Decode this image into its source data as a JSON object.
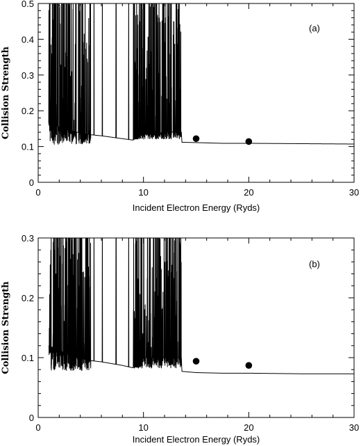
{
  "chart_data": [
    {
      "type": "line",
      "panel_label": "(a)",
      "xlabel": "Incident Electron Energy (Ryds)",
      "ylabel": "Collision Strength",
      "xlim": [
        0,
        30
      ],
      "ylim": [
        0,
        0.5
      ],
      "xticks": [
        "0",
        "10",
        "20",
        "30"
      ],
      "yticks": [
        "0",
        "0.1",
        "0.2",
        "0.3",
        "0.4",
        "0.5"
      ],
      "background": [
        [
          1.0,
          0.165
        ],
        [
          2.0,
          0.155
        ],
        [
          3.0,
          0.145
        ],
        [
          4.0,
          0.138
        ],
        [
          5.0,
          0.133
        ],
        [
          6.0,
          0.13
        ],
        [
          7.0,
          0.126
        ],
        [
          8.0,
          0.122
        ],
        [
          9.0,
          0.118
        ],
        [
          10.0,
          0.135
        ],
        [
          11.0,
          0.135
        ],
        [
          12.0,
          0.14
        ],
        [
          13.0,
          0.14
        ],
        [
          13.6,
          0.14
        ],
        [
          13.65,
          0.112
        ],
        [
          15.0,
          0.111
        ],
        [
          17.5,
          0.109
        ],
        [
          20.0,
          0.109
        ],
        [
          25.0,
          0.108
        ],
        [
          30.0,
          0.107
        ]
      ],
      "resonance_regions": [
        {
          "x_from": 1.0,
          "x_to": 5.0,
          "y_low": 0.105,
          "y_high": 0.5
        },
        {
          "x_from": 9.0,
          "x_to": 13.6,
          "y_low": 0.12,
          "y_high": 0.5
        }
      ],
      "points": [
        [
          15,
          0.122
        ],
        [
          20,
          0.114
        ]
      ]
    },
    {
      "type": "line",
      "panel_label": "(b)",
      "xlabel": "Incident Electron Energy (Ryds)",
      "ylabel": "Collision Strength",
      "xlim": [
        0,
        30
      ],
      "ylim": [
        0,
        0.3
      ],
      "xticks": [
        "0",
        "10",
        "20",
        "30"
      ],
      "yticks": [
        "0",
        "0.1",
        "0.2",
        "0.3"
      ],
      "background": [
        [
          1.0,
          0.12
        ],
        [
          2.0,
          0.112
        ],
        [
          3.0,
          0.104
        ],
        [
          4.0,
          0.099
        ],
        [
          5.0,
          0.095
        ],
        [
          6.0,
          0.093
        ],
        [
          7.0,
          0.09
        ],
        [
          8.0,
          0.087
        ],
        [
          9.0,
          0.083
        ],
        [
          10.0,
          0.1
        ],
        [
          11.0,
          0.1
        ],
        [
          12.0,
          0.1
        ],
        [
          13.0,
          0.1
        ],
        [
          13.6,
          0.1
        ],
        [
          13.65,
          0.077
        ],
        [
          15.0,
          0.075
        ],
        [
          17.5,
          0.074
        ],
        [
          20.0,
          0.074
        ],
        [
          25.0,
          0.073
        ],
        [
          30.0,
          0.073
        ]
      ],
      "resonance_regions": [
        {
          "x_from": 1.0,
          "x_to": 5.0,
          "y_low": 0.078,
          "y_high": 0.3
        },
        {
          "x_from": 9.0,
          "x_to": 13.6,
          "y_low": 0.082,
          "y_high": 0.3
        }
      ],
      "points": [
        [
          15,
          0.094
        ],
        [
          20,
          0.087
        ]
      ]
    }
  ]
}
